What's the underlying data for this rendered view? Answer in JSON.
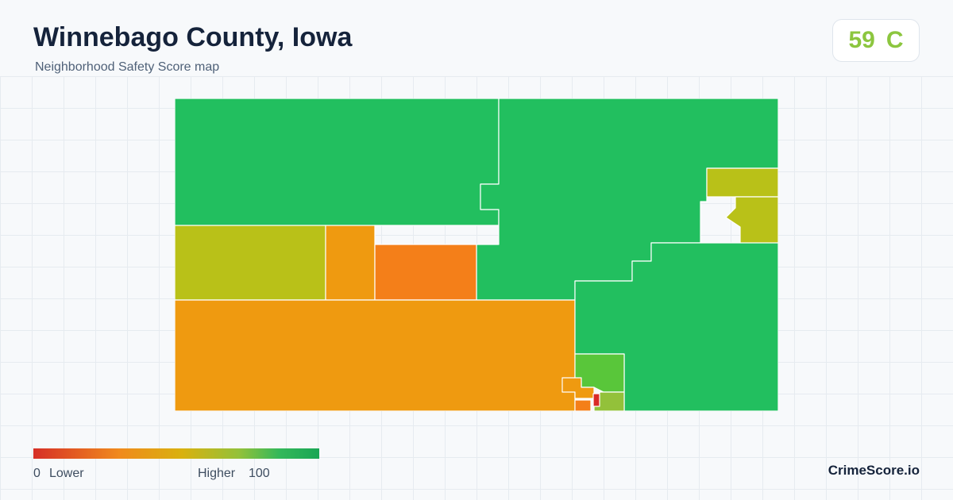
{
  "header": {
    "title": "Winnebago County, Iowa",
    "subtitle": "Neighborhood Safety Score map"
  },
  "score": {
    "value": "59",
    "grade": "C",
    "color": "#8cc63f"
  },
  "legend": {
    "min_value": "0",
    "min_label": "Lower",
    "max_label": "Higher",
    "max_value": "100",
    "colors": [
      "#d62f27",
      "#f08a1c",
      "#d9b10f",
      "#93c13a",
      "#1aa655"
    ]
  },
  "brand": "CrimeScore.io",
  "map": {
    "region": "Winnebago County, Iowa",
    "fill_colors": {
      "high": "#22bf5f",
      "medium_high": "#59c63a",
      "medium": "#b9c118",
      "medium_low": "#ef9a10",
      "low": "#f47f19",
      "lowest": "#d92b27"
    }
  }
}
